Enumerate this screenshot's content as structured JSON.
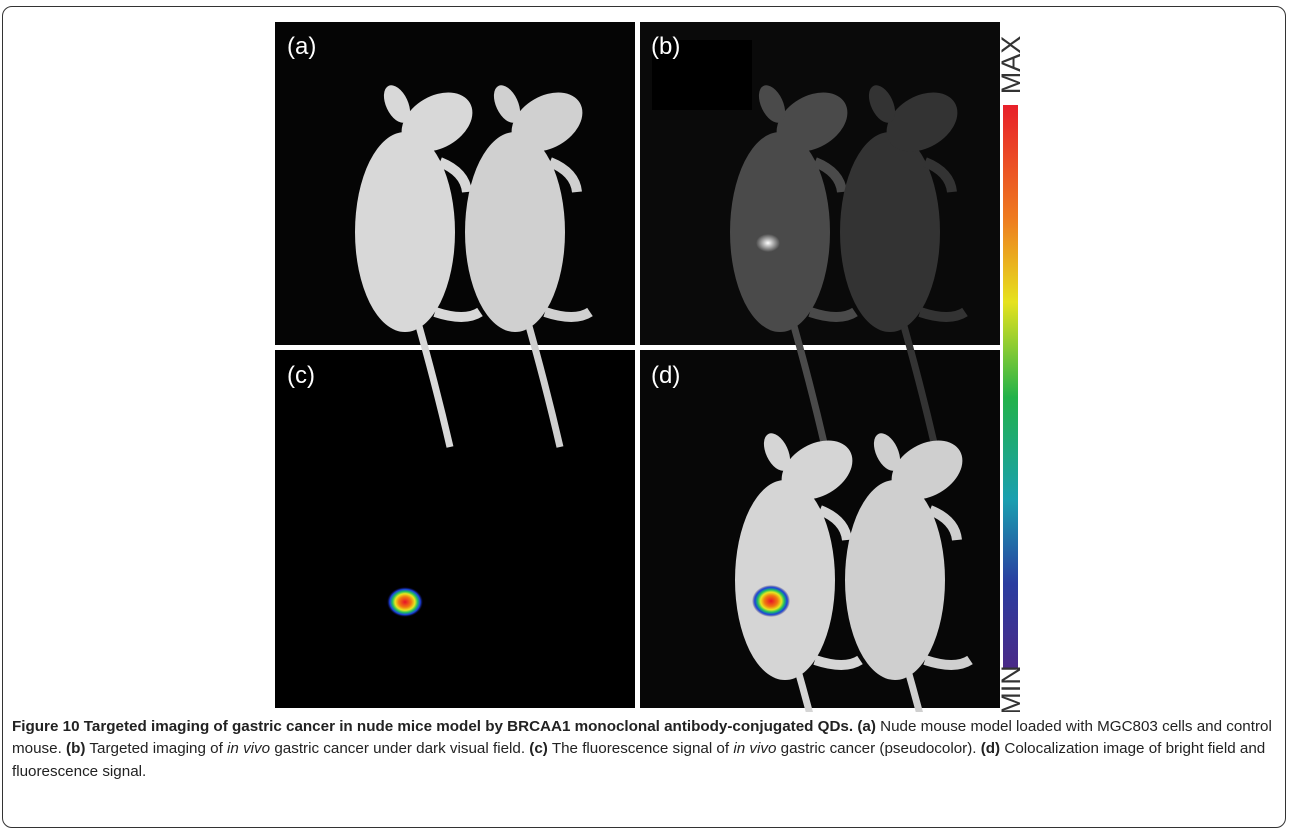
{
  "figure": {
    "panels": [
      {
        "label": "(a)"
      },
      {
        "label": "(b)"
      },
      {
        "label": "(c)"
      },
      {
        "label": "(d)"
      }
    ],
    "colorbar": {
      "max": "MAX",
      "min": "MIN"
    }
  },
  "caption": {
    "number": "Figure 10",
    "title": "Targeted imaging of gastric cancer in nude mice model by BRCAA1 monoclonal antibody-conjugated QDs.",
    "parts": [
      {
        "label": "(a)",
        "text": "Nude mouse model loaded with MGC803 cells and control mouse."
      },
      {
        "label": "(b)",
        "text": "Targeted imaging of",
        "em": "in vivo",
        "rest": "gastric cancer under dark visual field."
      },
      {
        "label": "(c)",
        "text": "The fluorescence signal of",
        "em": "in vivo",
        "rest": "gastric cancer (pseudocolor)."
      },
      {
        "label": "(d)",
        "text": "Colocalization image of bright field and fluorescence signal."
      }
    ]
  }
}
